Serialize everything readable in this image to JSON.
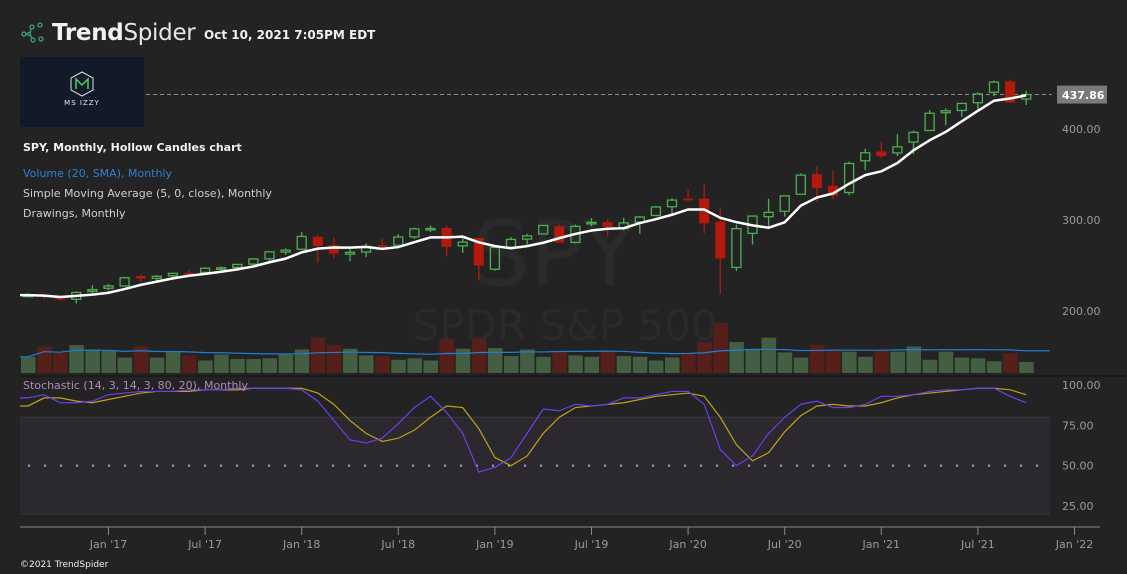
{
  "brand": {
    "name_bold": "Trend",
    "name_light": "Spider",
    "icon": "spider-network-icon",
    "accent": "#3fa37a"
  },
  "timestamp": "Oct 10, 2021 7:05PM EDT",
  "logo": {
    "text": "MS IZZY"
  },
  "legend": {
    "main": "SPY, Monthly, Hollow Candles chart",
    "volume": "Volume (20, SMA), Monthly",
    "sma": "Simple Moving Average (5, 0, close), Monthly",
    "drawings": "Drawings, Monthly",
    "stochastic": "Stochastic (14, 3, 14, 3, 80, 20), Monthly"
  },
  "watermark": {
    "symbol": "SPY",
    "name": "SPDR S&P 500"
  },
  "footer": "©2021 TrendSpider",
  "colors": {
    "up": "#4caf50",
    "down": "#b31a0c",
    "sma": "#ffffff",
    "vol_up": "#445e41",
    "vol_down": "#561f1a",
    "vol_sma": "#1e7fd8",
    "stoch_k": "#6a3ff0",
    "stoch_d": "#bfa312",
    "last_price_bg": "#7a7a7a"
  },
  "chart_data": {
    "type": "candlestick",
    "symbol": "SPY",
    "interval": "Monthly",
    "last_price": "437.86",
    "price_ticks": [
      "200.00",
      "300.00",
      "400.00"
    ],
    "stoch_ticks": [
      "25.00",
      "50.00",
      "75.00",
      "100.00"
    ],
    "stoch_bands": [
      20,
      80
    ],
    "x_ticks": [
      "Jan '17",
      "Jul '17",
      "Jan '18",
      "Jul '18",
      "Jan '19",
      "Jul '19",
      "Jan '20",
      "Jul '20",
      "Jan '21",
      "Jul '21",
      "Jan '22"
    ],
    "start": "2016-08",
    "ohlc": [
      [
        217.2,
        219.6,
        216.6,
        217.4
      ],
      [
        217.4,
        219.2,
        213.0,
        216.3
      ],
      [
        216.3,
        217.3,
        210.8,
        212.6
      ],
      [
        212.9,
        221.5,
        208.4,
        220.4
      ],
      [
        221.6,
        228.3,
        219.2,
        223.5
      ],
      [
        225.0,
        229.7,
        222.7,
        227.5
      ],
      [
        227.5,
        237.3,
        226.8,
        236.5
      ],
      [
        238.4,
        240.3,
        231.6,
        235.7
      ],
      [
        235.8,
        239.5,
        232.5,
        238.1
      ],
      [
        238.7,
        242.1,
        235.4,
        241.4
      ],
      [
        241.9,
        245.0,
        239.0,
        241.8
      ],
      [
        242.4,
        248.0,
        241.7,
        247.0
      ],
      [
        247.5,
        249.0,
        242.2,
        247.5
      ],
      [
        247.9,
        251.3,
        244.0,
        251.2
      ],
      [
        251.5,
        258.0,
        251.0,
        257.2
      ],
      [
        257.3,
        265.5,
        254.8,
        265.0
      ],
      [
        264.8,
        268.6,
        261.8,
        266.9
      ],
      [
        267.8,
        286.6,
        267.4,
        281.9
      ],
      [
        281.6,
        283.3,
        252.9,
        271.6
      ],
      [
        272.3,
        280.4,
        257.8,
        263.2
      ],
      [
        262.5,
        271.1,
        254.7,
        264.5
      ],
      [
        264.8,
        274.3,
        259.1,
        270.9
      ],
      [
        272.4,
        279.5,
        268.5,
        271.3
      ],
      [
        272.3,
        284.4,
        269.7,
        281.3
      ],
      [
        281.5,
        291.7,
        279.2,
        290.3
      ],
      [
        289.8,
        294.0,
        286.7,
        290.7
      ],
      [
        291.2,
        293.9,
        259.9,
        270.6
      ],
      [
        271.6,
        281.7,
        263.7,
        275.7
      ],
      [
        280.3,
        280.4,
        233.8,
        249.9
      ],
      [
        245.9,
        270.5,
        244.2,
        269.9
      ],
      [
        270.2,
        281.4,
        268.8,
        278.7
      ],
      [
        279.0,
        284.8,
        273.0,
        282.5
      ],
      [
        284.7,
        293.3,
        284.0,
        294.0
      ],
      [
        293.0,
        294.9,
        275.3,
        275.3
      ],
      [
        275.4,
        295.0,
        274.3,
        293.0
      ],
      [
        297.0,
        302.2,
        293.2,
        297.4
      ],
      [
        297.6,
        300.9,
        282.0,
        292.5
      ],
      [
        290.6,
        302.6,
        288.6,
        296.8
      ],
      [
        297.7,
        304.6,
        284.8,
        303.3
      ],
      [
        304.9,
        315.5,
        304.7,
        314.3
      ],
      [
        314.6,
        323.8,
        307.1,
        321.9
      ],
      [
        323.5,
        332.9,
        320.4,
        321.7
      ],
      [
        323.4,
        339.1,
        285.5,
        296.3
      ],
      [
        298.2,
        313.8,
        218.3,
        257.8
      ],
      [
        247.9,
        294.9,
        243.9,
        290.5
      ],
      [
        285.3,
        305.1,
        273.0,
        304.3
      ],
      [
        303.6,
        323.4,
        292.5,
        308.4
      ],
      [
        309.6,
        327.2,
        303.7,
        326.5
      ],
      [
        328.3,
        351.3,
        327.7,
        349.3
      ],
      [
        350.4,
        358.8,
        319.8,
        334.9
      ],
      [
        337.7,
        354.0,
        322.6,
        326.5
      ],
      [
        330.2,
        364.4,
        327.2,
        362.1
      ],
      [
        365.1,
        378.5,
        354.6,
        373.9
      ],
      [
        375.3,
        385.9,
        368.3,
        370.1
      ],
      [
        373.7,
        394.2,
        370.4,
        380.4
      ],
      [
        385.6,
        398.0,
        372.1,
        396.3
      ],
      [
        398.4,
        420.7,
        398.2,
        417.3
      ],
      [
        417.9,
        422.8,
        404.0,
        420.0
      ],
      [
        420.4,
        428.6,
        413.5,
        428.1
      ],
      [
        428.9,
        440.3,
        421.0,
        438.5
      ],
      [
        440.3,
        453.1,
        436.1,
        451.6
      ],
      [
        452.3,
        454.1,
        428.8,
        429.1
      ],
      [
        433.0,
        441.7,
        426.4,
        437.86
      ]
    ],
    "volume_millions": [
      1300,
      2000,
      1550,
      2100,
      1800,
      1700,
      1250,
      2000,
      1250,
      1650,
      1400,
      1050,
      1450,
      1150,
      1150,
      1200,
      1450,
      1800,
      2600,
      2100,
      1850,
      1400,
      1350,
      1100,
      1200,
      1050,
      2500,
      1850,
      2550,
      1900,
      1350,
      1800,
      1300,
      1700,
      1400,
      1300,
      1700,
      1350,
      1300,
      1050,
      1250,
      1600,
      2300,
      3600,
      2300,
      1850,
      2600,
      1600,
      1250,
      2100,
      1800,
      1650,
      1300,
      1750,
      1650,
      2000,
      1100,
      1650,
      1250,
      1200,
      1000,
      1550,
      950
    ],
    "stoch_k": [
      92,
      94,
      89,
      89,
      90,
      94,
      95,
      96,
      96,
      96,
      97,
      97,
      97,
      98,
      98,
      98,
      98,
      97,
      90,
      78,
      66,
      64,
      67,
      76,
      86,
      93,
      83,
      70,
      46,
      49,
      55,
      70,
      85,
      84,
      88,
      87,
      88,
      92,
      92,
      94,
      96,
      96,
      88,
      60,
      50,
      56,
      70,
      80,
      88,
      90,
      86,
      86,
      88,
      93,
      93,
      94,
      96,
      97,
      97,
      98,
      98,
      93,
      89
    ],
    "stoch_d": [
      87,
      92,
      92,
      90,
      89,
      91,
      93,
      95,
      96,
      96,
      96,
      97,
      97,
      97,
      98,
      98,
      98,
      98,
      95,
      88,
      78,
      70,
      65,
      67,
      72,
      80,
      87,
      86,
      73,
      55,
      50,
      56,
      70,
      80,
      86,
      87,
      88,
      89,
      91,
      93,
      94,
      95,
      93,
      80,
      63,
      53,
      58,
      71,
      81,
      87,
      88,
      87,
      87,
      89,
      92,
      94,
      95,
      96,
      97,
      98,
      98,
      97,
      94
    ]
  }
}
